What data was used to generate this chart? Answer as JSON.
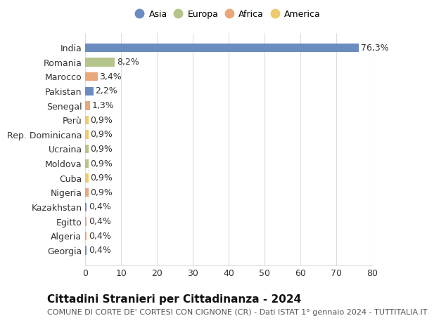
{
  "categories": [
    "India",
    "Romania",
    "Marocco",
    "Pakistan",
    "Senegal",
    "Perù",
    "Rep. Dominicana",
    "Ucraina",
    "Moldova",
    "Cuba",
    "Nigeria",
    "Kazakhstan",
    "Egitto",
    "Algeria",
    "Georgia"
  ],
  "values": [
    76.3,
    8.2,
    3.4,
    2.2,
    1.3,
    0.9,
    0.9,
    0.9,
    0.9,
    0.9,
    0.9,
    0.4,
    0.4,
    0.4,
    0.4
  ],
  "labels": [
    "76,3%",
    "8,2%",
    "3,4%",
    "2,2%",
    "1,3%",
    "0,9%",
    "0,9%",
    "0,9%",
    "0,9%",
    "0,9%",
    "0,9%",
    "0,4%",
    "0,4%",
    "0,4%",
    "0,4%"
  ],
  "bar_colors": [
    "#6b8cbf",
    "#b5c48a",
    "#e8a87c",
    "#6b8cbf",
    "#e8a87c",
    "#f0c96e",
    "#f0c96e",
    "#b5c48a",
    "#b5c48a",
    "#f0c96e",
    "#e8a87c",
    "#6b8cbf",
    "#e8a87c",
    "#e8a87c",
    "#6b8cbf"
  ],
  "continent_colors": {
    "Asia": "#6b8cbf",
    "Europa": "#b5c48a",
    "Africa": "#e8a87c",
    "America": "#f0c96e"
  },
  "xlim": [
    0,
    80
  ],
  "xticks": [
    0,
    10,
    20,
    30,
    40,
    50,
    60,
    70,
    80
  ],
  "title": "Cittadini Stranieri per Cittadinanza - 2024",
  "subtitle": "COMUNE DI CORTE DE' CORTESI CON CIGNONE (CR) - Dati ISTAT 1° gennaio 2024 - TUTTITALIA.IT",
  "background_color": "#ffffff",
  "grid_color": "#dddddd",
  "bar_height": 0.6,
  "label_fontsize": 9,
  "ytick_fontsize": 9,
  "xtick_fontsize": 9,
  "title_fontsize": 11,
  "subtitle_fontsize": 8
}
